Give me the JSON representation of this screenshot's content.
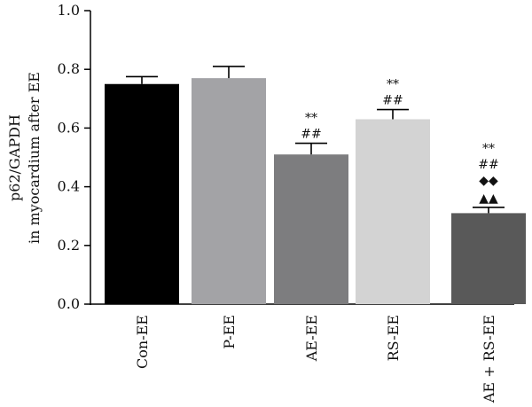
{
  "chart_data": {
    "type": "bar",
    "categories": [
      "Con-EE",
      "P-EE",
      "AE-EE",
      "RS-EE",
      "AE + RS-EE"
    ],
    "values": [
      0.75,
      0.77,
      0.51,
      0.63,
      0.31
    ],
    "errors": [
      0.025,
      0.04,
      0.038,
      0.033,
      0.02
    ],
    "bar_colors": [
      "#000000",
      "#a3a3a6",
      "#7d7d7f",
      "#d3d3d3",
      "#595959"
    ],
    "ylabel_lines": [
      "p62/GAPDH",
      "in myocardium after EE"
    ],
    "ylim": [
      0,
      1.0
    ],
    "yticks": [
      "0.0",
      "0.2",
      "0.4",
      "0.6",
      "0.8",
      "1.0"
    ],
    "annotations": [
      [],
      [],
      [
        "##",
        "**"
      ],
      [
        "##",
        "**"
      ],
      [
        "▲▲",
        "◆◆",
        "##",
        "**"
      ]
    ],
    "grid": false,
    "legend": "none"
  }
}
